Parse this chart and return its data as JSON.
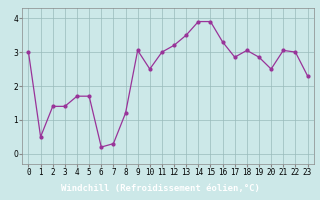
{
  "x": [
    0,
    1,
    2,
    3,
    4,
    5,
    6,
    7,
    8,
    9,
    10,
    11,
    12,
    13,
    14,
    15,
    16,
    17,
    18,
    19,
    20,
    21,
    22,
    23
  ],
  "y": [
    3.0,
    0.5,
    1.4,
    1.4,
    1.7,
    1.7,
    0.2,
    0.3,
    1.2,
    3.05,
    2.5,
    3.0,
    3.2,
    3.5,
    3.9,
    3.9,
    3.3,
    2.85,
    3.05,
    2.85,
    2.5,
    3.05,
    3.0,
    2.3
  ],
  "line_color": "#993399",
  "marker_color": "#993399",
  "bg_color": "#cce8e8",
  "plot_bg_color": "#cce8e8",
  "grid_color": "#99bbbb",
  "xlabel": "Windchill (Refroidissement éolien,°C)",
  "xlabel_color": "#ffffff",
  "xlabel_bg": "#663399",
  "xlim": [
    -0.5,
    23.5
  ],
  "ylim": [
    -0.3,
    4.3
  ],
  "yticks": [
    0,
    1,
    2,
    3,
    4
  ],
  "xtick_labels": [
    "0",
    "1",
    "2",
    "3",
    "4",
    "5",
    "6",
    "7",
    "8",
    "9",
    "10",
    "11",
    "12",
    "13",
    "14",
    "15",
    "16",
    "17",
    "18",
    "19",
    "20",
    "21",
    "22",
    "23"
  ],
  "tick_fontsize": 5.5,
  "xlabel_fontsize": 6.5
}
